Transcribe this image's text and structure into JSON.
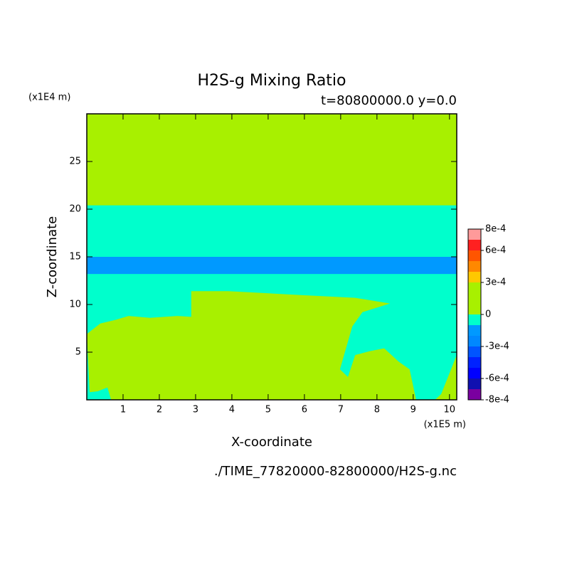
{
  "chart_data": {
    "type": "contour",
    "title": "H2S-g Mixing Ratio",
    "subtitle": "t=80800000.0 y=0.0",
    "xlabel": "X-coordinate",
    "ylabel": "Z-coordinate",
    "xunit": "(x1E5 m)",
    "yunit": "(x1E4 m)",
    "footer": "./TIME_77820000-82800000/H2S-g.nc",
    "xlim": [
      0,
      10.2
    ],
    "ylim": [
      0,
      30
    ],
    "xticks": [
      1,
      2,
      3,
      4,
      5,
      6,
      7,
      8,
      9,
      10
    ],
    "yticks": [
      5,
      10,
      15,
      20,
      25
    ],
    "colorbar": {
      "levels": [
        -0.0008,
        -0.0007,
        -0.0006,
        -0.0005,
        -0.0004,
        -0.0003,
        -0.0002,
        -0.0001,
        0,
        0.0001,
        0.0002,
        0.0003,
        0.0004,
        0.0005,
        0.0006,
        0.0007,
        0.0008
      ],
      "colors": [
        "#7a00a0",
        "#1010b0",
        "#0000ff",
        "#0022ff",
        "#0055ff",
        "#0088ff",
        "#0099ff",
        "#00ffcc",
        "#a8f000",
        "#a8f000",
        "#a8f000",
        "#ffc800",
        "#ff8800",
        "#ff5500",
        "#ff2020",
        "#ff9a9a"
      ],
      "ticks": [
        {
          "value": 0.0008,
          "label": "8e-4"
        },
        {
          "value": 0.0006,
          "label": "6e-4"
        },
        {
          "value": 0.0003,
          "label": "3e-4"
        },
        0,
        {
          "value": -0.0003,
          "label": "-3e-4"
        },
        {
          "value": -0.0006,
          "label": "-6e-4"
        },
        {
          "value": -0.0008,
          "label": "-8e-4"
        }
      ]
    },
    "regions": [
      {
        "value": 0,
        "points": [
          [
            0,
            0
          ],
          [
            10.2,
            0
          ],
          [
            10.2,
            30
          ],
          [
            0,
            30
          ]
        ]
      },
      {
        "value": -5e-05,
        "points": [
          [
            0,
            0
          ],
          [
            10.2,
            0
          ],
          [
            10.2,
            20.4
          ],
          [
            0,
            20.4
          ]
        ]
      },
      {
        "value": -0.00015,
        "points": [
          [
            0,
            13.2
          ],
          [
            10.2,
            13.2
          ],
          [
            10.2,
            15
          ],
          [
            0,
            15
          ]
        ]
      },
      {
        "value": 0,
        "points": [
          [
            0,
            6.9
          ],
          [
            0.37,
            8.0
          ],
          [
            0.8,
            8.4
          ],
          [
            1.15,
            8.8
          ],
          [
            1.74,
            8.6
          ],
          [
            2.5,
            8.8
          ],
          [
            2.88,
            8.7
          ],
          [
            2.88,
            11.4
          ],
          [
            3.9,
            11.4
          ],
          [
            5.85,
            11.0
          ],
          [
            7.4,
            10.7
          ],
          [
            8.36,
            10.1
          ],
          [
            7.6,
            9.2
          ],
          [
            7.32,
            7.7
          ],
          [
            6.98,
            3.2
          ],
          [
            7.2,
            2.4
          ],
          [
            7.4,
            4.7
          ],
          [
            7.8,
            5.1
          ],
          [
            8.2,
            5.4
          ],
          [
            8.6,
            4.0
          ],
          [
            8.9,
            3.2
          ],
          [
            9.08,
            0
          ],
          [
            0.67,
            0
          ],
          [
            0.57,
            1.3
          ],
          [
            0.3,
            0.9
          ],
          [
            0.08,
            0.8
          ]
        ]
      },
      {
        "value": 0,
        "points": [
          [
            9.77,
            0.6
          ],
          [
            10.2,
            4.7
          ],
          [
            10.2,
            0
          ],
          [
            9.6,
            0
          ]
        ]
      }
    ]
  }
}
